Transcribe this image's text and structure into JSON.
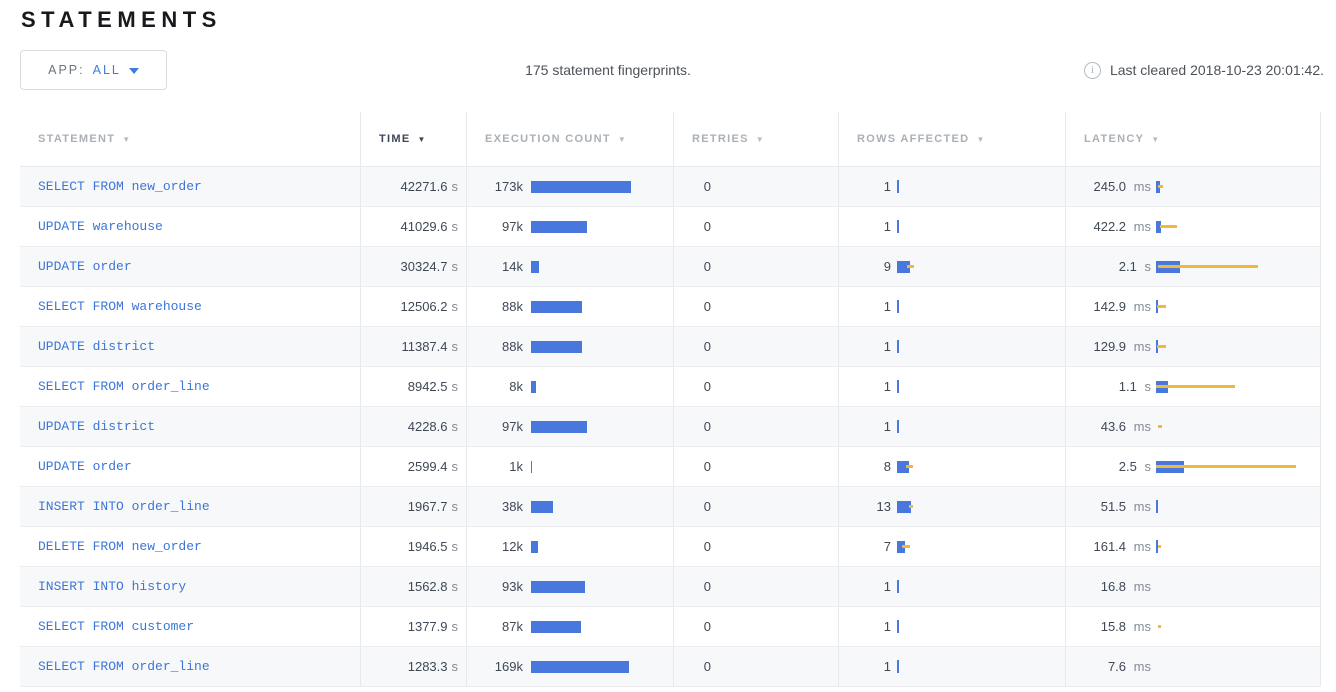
{
  "page": {
    "title": "STATEMENTS"
  },
  "toolbar": {
    "app_filter": {
      "label": "APP:",
      "value": "ALL"
    },
    "summary": "175 statement fingerprints.",
    "info_icon": "i",
    "last_cleared": "Last cleared 2018-10-23 20:01:42."
  },
  "colors": {
    "bar_blue": "#4878dd",
    "dev_yellow": "#f0b939",
    "link_blue": "#3d76d8"
  },
  "table": {
    "columns": [
      {
        "label": "STATEMENT",
        "sort_icon": "▼",
        "active": false
      },
      {
        "label": "TIME",
        "sort_icon": "▼",
        "active": true
      },
      {
        "label": "EXECUTION COUNT",
        "sort_icon": "▼",
        "active": false
      },
      {
        "label": "RETRIES",
        "sort_icon": "▼",
        "active": false
      },
      {
        "label": "ROWS AFFECTED",
        "sort_icon": "▼",
        "active": false
      },
      {
        "label": "LATENCY",
        "sort_icon": "▼",
        "active": false
      }
    ],
    "rows": [
      {
        "statement": "SELECT FROM new_order",
        "time": "42271.6",
        "time_unit": "s",
        "count": "173k",
        "count_bar": 100,
        "retries": "0",
        "rows": "1",
        "rows_bar": 2,
        "rows_dev": null,
        "latency": "245.0",
        "latency_unit": "ms",
        "lat_bar": 3.5,
        "lat_dev": [
          2,
          7
        ]
      },
      {
        "statement": "UPDATE warehouse",
        "time": "41029.6",
        "time_unit": "s",
        "count": "97k",
        "count_bar": 56,
        "retries": "0",
        "rows": "1",
        "rows_bar": 2,
        "rows_dev": null,
        "latency": "422.2",
        "latency_unit": "ms",
        "lat_bar": 4.5,
        "lat_dev": [
          3.5,
          21
        ]
      },
      {
        "statement": "UPDATE order",
        "time": "30324.7",
        "time_unit": "s",
        "count": "14k",
        "count_bar": 8,
        "retries": "0",
        "rows": "9",
        "rows_bar": 13,
        "rows_dev": [
          10,
          17
        ],
        "latency": "2.1",
        "latency_unit": "s",
        "lat_bar": 24,
        "lat_dev": [
          2,
          102
        ]
      },
      {
        "statement": "SELECT FROM warehouse",
        "time": "12506.2",
        "time_unit": "s",
        "count": "88k",
        "count_bar": 51,
        "retries": "0",
        "rows": "1",
        "rows_bar": 2,
        "rows_dev": null,
        "latency": "142.9",
        "latency_unit": "ms",
        "lat_bar": 2,
        "lat_dev": [
          1,
          10
        ]
      },
      {
        "statement": "UPDATE district",
        "time": "11387.4",
        "time_unit": "s",
        "count": "88k",
        "count_bar": 51,
        "retries": "0",
        "rows": "1",
        "rows_bar": 2,
        "rows_dev": null,
        "latency": "129.9",
        "latency_unit": "ms",
        "lat_bar": 1.5,
        "lat_dev": [
          1,
          10
        ]
      },
      {
        "statement": "SELECT FROM order_line",
        "time": "8942.5",
        "time_unit": "s",
        "count": "8k",
        "count_bar": 5,
        "retries": "0",
        "rows": "1",
        "rows_bar": 2,
        "rows_dev": null,
        "latency": "1.1",
        "latency_unit": "s",
        "lat_bar": 11.5,
        "lat_dev": [
          0,
          79
        ]
      },
      {
        "statement": "UPDATE district",
        "time": "4228.6",
        "time_unit": "s",
        "count": "97k",
        "count_bar": 56,
        "retries": "0",
        "rows": "1",
        "rows_bar": 2,
        "rows_dev": null,
        "latency": "43.6",
        "latency_unit": "ms",
        "lat_bar": 0,
        "lat_dev": [
          2,
          6
        ]
      },
      {
        "statement": "UPDATE order",
        "time": "2599.4",
        "time_unit": "s",
        "count": "1k",
        "count_bar": 1,
        "retries": "0",
        "rows": "8",
        "rows_bar": 12,
        "rows_dev": [
          9,
          16
        ],
        "latency": "2.5",
        "latency_unit": "s",
        "lat_bar": 28,
        "lat_dev": [
          0,
          140
        ]
      },
      {
        "statement": "INSERT INTO order_line",
        "time": "1967.7",
        "time_unit": "s",
        "count": "38k",
        "count_bar": 22,
        "retries": "0",
        "rows": "13",
        "rows_bar": 14,
        "rows_dev": [
          12,
          16
        ],
        "latency": "51.5",
        "latency_unit": "ms",
        "lat_bar": 1.5,
        "lat_dev": null
      },
      {
        "statement": "DELETE FROM new_order",
        "time": "1946.5",
        "time_unit": "s",
        "count": "12k",
        "count_bar": 7,
        "retries": "0",
        "rows": "7",
        "rows_bar": 8,
        "rows_dev": [
          5,
          13
        ],
        "latency": "161.4",
        "latency_unit": "ms",
        "lat_bar": 2,
        "lat_dev": [
          1.5,
          5
        ]
      },
      {
        "statement": "INSERT INTO history",
        "time": "1562.8",
        "time_unit": "s",
        "count": "93k",
        "count_bar": 54,
        "retries": "0",
        "rows": "1",
        "rows_bar": 2,
        "rows_dev": null,
        "latency": "16.8",
        "latency_unit": "ms",
        "lat_bar": 0,
        "lat_dev": null
      },
      {
        "statement": "SELECT FROM customer",
        "time": "1377.9",
        "time_unit": "s",
        "count": "87k",
        "count_bar": 50,
        "retries": "0",
        "rows": "1",
        "rows_bar": 2,
        "rows_dev": null,
        "latency": "15.8",
        "latency_unit": "ms",
        "lat_bar": 0,
        "lat_dev": [
          1.5,
          5
        ]
      },
      {
        "statement": "SELECT FROM order_line",
        "time": "1283.3",
        "time_unit": "s",
        "count": "169k",
        "count_bar": 98,
        "retries": "0",
        "rows": "1",
        "rows_bar": 2,
        "rows_dev": null,
        "latency": "7.6",
        "latency_unit": "ms",
        "lat_bar": 0,
        "lat_dev": null
      }
    ]
  }
}
